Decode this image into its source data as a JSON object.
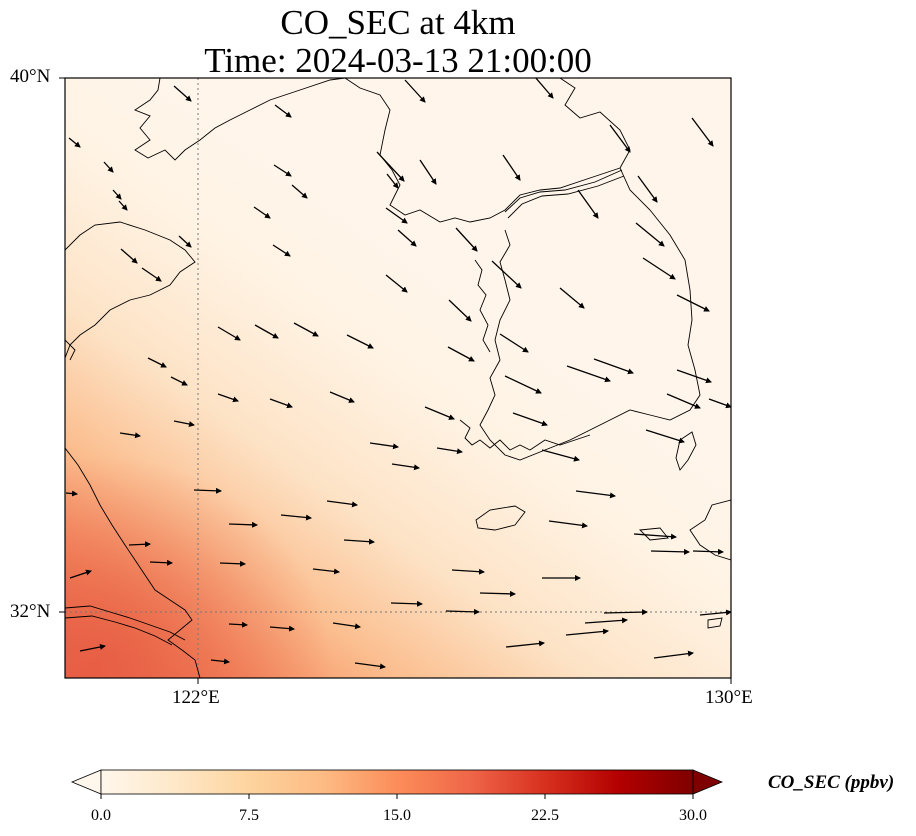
{
  "map": {
    "title_line1": "CO_SEC at 4km",
    "title_line2": "Time: 2024-03-13 21:00:00",
    "extent": {
      "lon": [
        120,
        130
      ],
      "lat": [
        31,
        40
      ]
    },
    "lat_ticks": [
      "40°N",
      "32°N"
    ],
    "lon_ticks": [
      "122°E",
      "130°E"
    ],
    "gridlines": {
      "lat": 32,
      "lon": 122,
      "style": "dotted"
    },
    "coastline_color": "#000000",
    "field_description_colors": {
      "low": "#fff5ea",
      "mid": "#fcc49a",
      "high": "#e9634a"
    }
  },
  "colorbar": {
    "label": "CO_SEC (ppbv)",
    "ticks": [
      "0.0",
      "7.5",
      "15.0",
      "22.5",
      "30.0"
    ],
    "range": [
      0,
      30
    ],
    "extend": "both",
    "colormap": "OrRd",
    "stops": [
      "#fff7ec",
      "#fee8c8",
      "#fdd49e",
      "#fdbb84",
      "#fc8d59",
      "#ef6548",
      "#d7301f",
      "#b30000",
      "#7f0000"
    ]
  },
  "wind_vectors": [
    [
      174,
      86,
      191,
      101
    ],
    [
      405,
      80,
      425,
      102
    ],
    [
      535,
      77,
      553,
      98
    ],
    [
      69,
      138,
      80,
      147
    ],
    [
      275,
      105,
      291,
      117
    ],
    [
      377,
      152,
      404,
      181
    ],
    [
      420,
      160,
      436,
      184
    ],
    [
      503,
      155,
      520,
      180
    ],
    [
      610,
      125,
      630,
      152
    ],
    [
      692,
      118,
      713,
      146
    ],
    [
      104,
      162,
      113,
      172
    ],
    [
      274,
      165,
      291,
      176
    ],
    [
      292,
      185,
      307,
      198
    ],
    [
      113,
      190,
      121,
      199
    ],
    [
      119,
      201,
      127,
      210
    ],
    [
      387,
      174,
      398,
      188
    ],
    [
      578,
      190,
      598,
      218
    ],
    [
      638,
      176,
      657,
      202
    ],
    [
      254,
      207,
      270,
      218
    ],
    [
      386,
      208,
      407,
      223
    ],
    [
      456,
      228,
      477,
      251
    ],
    [
      398,
      230,
      416,
      246
    ],
    [
      636,
      223,
      664,
      246
    ],
    [
      179,
      236,
      191,
      247
    ],
    [
      121,
      249,
      137,
      263
    ],
    [
      273,
      245,
      290,
      256
    ],
    [
      142,
      268,
      161,
      281
    ],
    [
      643,
      258,
      675,
      279
    ],
    [
      492,
      261,
      521,
      288
    ],
    [
      386,
      275,
      407,
      292
    ],
    [
      560,
      288,
      584,
      308
    ],
    [
      677,
      295,
      709,
      311
    ],
    [
      449,
      300,
      471,
      321
    ],
    [
      218,
      327,
      240,
      340
    ],
    [
      255,
      325,
      278,
      338
    ],
    [
      294,
      323,
      318,
      336
    ],
    [
      347,
      335,
      373,
      348
    ],
    [
      500,
      334,
      528,
      352
    ],
    [
      448,
      347,
      474,
      361
    ],
    [
      148,
      358,
      166,
      367
    ],
    [
      171,
      377,
      187,
      385
    ],
    [
      567,
      366,
      610,
      381
    ],
    [
      594,
      359,
      633,
      373
    ],
    [
      677,
      370,
      711,
      382
    ],
    [
      505,
      376,
      541,
      393
    ],
    [
      218,
      394,
      238,
      401
    ],
    [
      270,
      399,
      292,
      407
    ],
    [
      330,
      392,
      354,
      402
    ],
    [
      425,
      407,
      454,
      419
    ],
    [
      513,
      413,
      547,
      425
    ],
    [
      667,
      394,
      700,
      408
    ],
    [
      709,
      399,
      731,
      407
    ],
    [
      646,
      430,
      684,
      442
    ],
    [
      174,
      421,
      194,
      425
    ],
    [
      120,
      433,
      140,
      436
    ],
    [
      370,
      443,
      398,
      447
    ],
    [
      437,
      448,
      462,
      452
    ],
    [
      542,
      450,
      579,
      460
    ],
    [
      392,
      464,
      419,
      468
    ],
    [
      194,
      490,
      221,
      491
    ],
    [
      576,
      491,
      615,
      496
    ],
    [
      327,
      501,
      357,
      505
    ],
    [
      281,
      515,
      311,
      518
    ],
    [
      229,
      524,
      257,
      525
    ],
    [
      549,
      521,
      587,
      526
    ],
    [
      344,
      540,
      374,
      542
    ],
    [
      129,
      545,
      150,
      544
    ],
    [
      634,
      534,
      676,
      537
    ],
    [
      651,
      551,
      689,
      552
    ],
    [
      693,
      551,
      723,
      552
    ],
    [
      150,
      562,
      172,
      563
    ],
    [
      220,
      563,
      245,
      564
    ],
    [
      313,
      569,
      339,
      572
    ],
    [
      452,
      570,
      484,
      572
    ],
    [
      542,
      578,
      580,
      578
    ],
    [
      480,
      593,
      515,
      594
    ],
    [
      391,
      603,
      422,
      604
    ],
    [
      446,
      611,
      479,
      612
    ],
    [
      604,
      613,
      647,
      612
    ],
    [
      229,
      624,
      247,
      625
    ],
    [
      270,
      627,
      294,
      629
    ],
    [
      333,
      623,
      360,
      627
    ],
    [
      566,
      635,
      608,
      631
    ],
    [
      585,
      623,
      627,
      620
    ],
    [
      506,
      647,
      544,
      643
    ],
    [
      80,
      651,
      105,
      646
    ],
    [
      211,
      660,
      229,
      662
    ],
    [
      355,
      663,
      385,
      667
    ],
    [
      654,
      658,
      693,
      653
    ],
    [
      700,
      615,
      731,
      612
    ],
    [
      70,
      578,
      91,
      571
    ],
    [
      66,
      493,
      77,
      494
    ]
  ]
}
